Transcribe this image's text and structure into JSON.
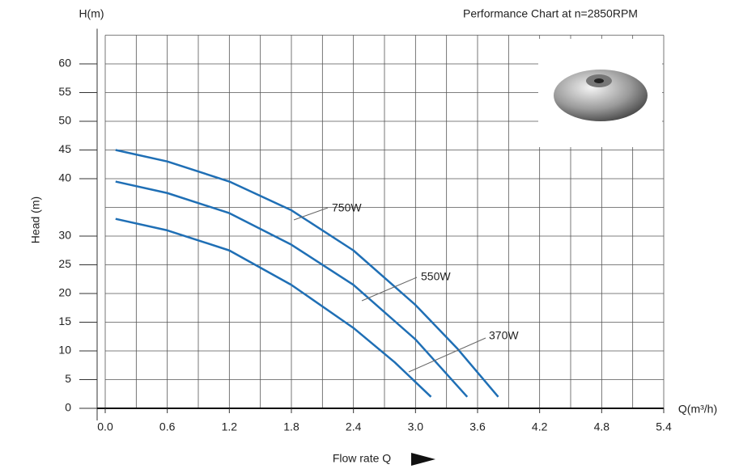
{
  "chart_data": {
    "type": "line",
    "title": "Performance Chart at n=2850RPM",
    "y_axis_unit": "H(m)",
    "y_axis_label": "Head (m)",
    "x_axis_unit": "Q(m³/h)",
    "x_axis_label": "Flow rate Q",
    "xlim": [
      0,
      5.4
    ],
    "ylim": [
      0,
      65
    ],
    "xticks": [
      {
        "value": 0,
        "label": "0.0"
      },
      0.6,
      1.2,
      1.8,
      2.4,
      {
        "value": 3,
        "label": "3.0"
      },
      3.6,
      4.2,
      4.8,
      5.4
    ],
    "yticks": [
      0,
      5,
      10,
      15,
      20,
      25,
      30,
      40,
      45,
      50,
      55,
      60
    ],
    "minor_grid": {
      "x": 0.3,
      "y": 5
    },
    "grid": true,
    "series": [
      {
        "name": "750W",
        "color": "#1f6fb5",
        "x": [
          0.1,
          0.6,
          1.2,
          1.8,
          2.4,
          3.0,
          3.4,
          3.8
        ],
        "values": [
          45,
          43,
          39.5,
          34.5,
          27.5,
          18,
          10.5,
          2
        ]
      },
      {
        "name": "550W",
        "color": "#1f6fb5",
        "x": [
          0.1,
          0.6,
          1.2,
          1.8,
          2.4,
          3.0,
          3.5
        ],
        "values": [
          39.5,
          37.5,
          34,
          28.5,
          21.5,
          12,
          2
        ]
      },
      {
        "name": "370W",
        "color": "#1f6fb5",
        "x": [
          0.1,
          0.6,
          1.2,
          1.8,
          2.4,
          2.8,
          3.15
        ],
        "values": [
          33,
          31,
          27.5,
          21.5,
          14,
          8,
          2
        ]
      }
    ]
  }
}
